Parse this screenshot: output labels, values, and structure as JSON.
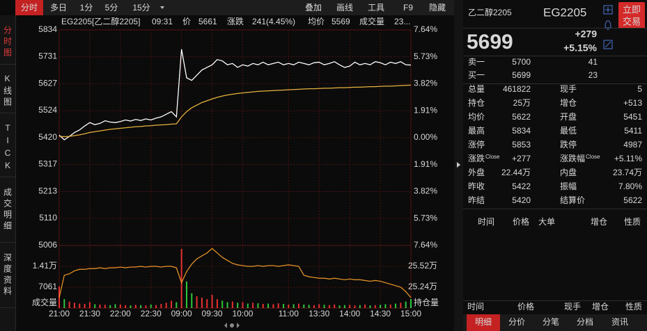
{
  "toolbar": {
    "tabs": [
      "分时",
      "多日",
      "1分",
      "5分",
      "15分"
    ],
    "tools": [
      "叠加",
      "画线",
      "工具",
      "F9",
      "隐藏"
    ]
  },
  "side_tabs": [
    "分时图",
    "K线图",
    "TICK",
    "成交明细",
    "深度资料"
  ],
  "header": [
    {
      "text": "EG2205[乙二醇2205]",
      "color": "#e8e8e8"
    },
    {
      "text": "09:31",
      "color": "#38c8e8"
    },
    {
      "text": "价",
      "color": "#e8e8e8"
    },
    {
      "text": "5661",
      "color": "#ff4040"
    },
    {
      "text": "涨跌",
      "color": "#e8e8e8"
    },
    {
      "text": "241(4.45%)",
      "color": "#ff4040"
    },
    {
      "text": "均价",
      "color": "#e8e8e8"
    },
    {
      "text": "5569",
      "color": "#ff4040"
    },
    {
      "text": "成交量",
      "color": "#e8e8e8"
    },
    {
      "text": "23...",
      "color": "#e8e8e8"
    }
  ],
  "chart_data": [
    {
      "type": "line",
      "x": [
        0,
        5,
        10,
        15,
        20,
        25,
        30,
        35,
        40,
        45,
        50,
        55,
        60,
        65,
        70,
        75,
        80,
        85,
        90,
        95,
        100,
        105,
        110,
        115,
        120,
        125,
        130,
        135,
        140,
        145,
        150,
        155,
        160,
        165,
        170,
        175,
        180,
        185,
        190,
        195,
        200,
        205,
        210,
        215,
        220,
        225,
        230,
        235,
        240,
        245,
        250,
        255,
        260,
        265,
        270,
        275,
        280,
        285,
        290,
        295,
        300,
        305,
        310,
        315,
        320,
        325,
        330,
        335,
        340,
        345
      ],
      "xlim": [
        0,
        345
      ],
      "xticks": [
        {
          "value": 0,
          "label": "21:00"
        },
        {
          "value": 30,
          "label": "21:30"
        },
        {
          "value": 60,
          "label": "22:00"
        },
        {
          "value": 90,
          "label": "22:30"
        },
        {
          "value": 120,
          "label": "09:00"
        },
        {
          "value": 150,
          "label": "09:30"
        },
        {
          "value": 180,
          "label": "10:00"
        },
        {
          "value": 225,
          "label": "11:00"
        },
        {
          "value": 255,
          "label": "13:30"
        },
        {
          "value": 285,
          "label": "14:00"
        },
        {
          "value": 315,
          "label": "14:30"
        },
        {
          "value": 345,
          "label": "15:00"
        }
      ],
      "ylim": [
        5006,
        5834
      ],
      "yticks": [
        5834,
        5731,
        5627,
        5524,
        5420,
        5317,
        5213,
        5110,
        5006
      ],
      "y2lim": [
        -7.64,
        7.64
      ],
      "y2ticks": [
        {
          "value": 7.64,
          "label": "7.64%"
        },
        {
          "value": 5.73,
          "label": "5.73%"
        },
        {
          "value": 3.82,
          "label": "3.82%"
        },
        {
          "value": 1.91,
          "label": "1.91%"
        },
        {
          "value": 0,
          "label": "0.00%"
        },
        {
          "value": -1.91,
          "label": "1.91%"
        },
        {
          "value": -3.82,
          "label": "3.82%"
        },
        {
          "value": -5.73,
          "label": "5.73%"
        },
        {
          "value": -7.64,
          "label": "7.64%"
        }
      ],
      "grid": true,
      "series": [
        {
          "color": "#ffffff",
          "values": [
            5430,
            5412,
            5425,
            5440,
            5450,
            5465,
            5478,
            5470,
            5475,
            5485,
            5480,
            5478,
            5482,
            5488,
            5484,
            5490,
            5486,
            5492,
            5488,
            5495,
            5500,
            5510,
            5520,
            5500,
            5760,
            5650,
            5640,
            5660,
            5680,
            5690,
            5700,
            5720,
            5715,
            5700,
            5705,
            5690,
            5700,
            5695,
            5705,
            5700,
            5710,
            5700,
            5705,
            5710,
            5700,
            5705,
            5700,
            5710,
            5705,
            5700,
            5708,
            5710,
            5700,
            5705,
            5712,
            5700,
            5690,
            5695,
            5710,
            5700,
            5705,
            5700,
            5712,
            5708,
            5700,
            5710,
            5705,
            5712,
            5700,
            5699
          ]
        },
        {
          "color": "#e8b33c",
          "values": [
            5425,
            5424,
            5425,
            5428,
            5431,
            5435,
            5440,
            5443,
            5446,
            5449,
            5452,
            5454,
            5456,
            5458,
            5460,
            5462,
            5463,
            5465,
            5466,
            5468,
            5469,
            5470,
            5472,
            5473,
            5500,
            5520,
            5535,
            5545,
            5555,
            5562,
            5569,
            5575,
            5580,
            5584,
            5587,
            5590,
            5592,
            5594,
            5596,
            5598,
            5599,
            5600,
            5601,
            5602,
            5603,
            5604,
            5605,
            5606,
            5607,
            5608,
            5608,
            5609,
            5610,
            5610,
            5611,
            5612,
            5612,
            5613,
            5614,
            5614,
            5615,
            5616,
            5616,
            5617,
            5618,
            5618,
            5619,
            5620,
            5621,
            5622
          ]
        }
      ]
    },
    {
      "type": "bar",
      "ylabel": "成交量",
      "y2label": "持仓量",
      "ylim": [
        0,
        21150
      ],
      "yticks": [
        {
          "value": 14100,
          "label": "1.41万"
        },
        7061
      ],
      "y2lim": [
        24.96,
        25.8
      ],
      "y2ticks": [
        {
          "value": 25.52,
          "label": "25.52万"
        },
        {
          "value": 25.24,
          "label": "25.24万"
        }
      ],
      "up_color": "#e83030",
      "down_color": "#2ec83a",
      "series": [
        {
          "values": [
            7300,
            3000,
            2200,
            1800,
            1500,
            1400,
            2000,
            1300,
            1200,
            1100,
            1000,
            1300,
            1200,
            1000,
            900,
            1100,
            1000,
            900,
            1200,
            1000,
            1400,
            1800,
            2500,
            2000,
            20000,
            9000,
            5000,
            4000,
            3500,
            3000,
            4500,
            3000,
            2500,
            2000,
            2200,
            1800,
            2000,
            1500,
            1800,
            1600,
            1400,
            1500,
            1300,
            1600,
            1400,
            1200,
            1300,
            1500,
            1200,
            1100,
            1000,
            1300,
            1100,
            1000,
            1200,
            900,
            1000,
            1100,
            900,
            1000,
            1200,
            900,
            1000,
            1100,
            1300,
            1200,
            1500,
            1800,
            2200,
            3000
          ]
        },
        {
          "axis": "y2",
          "color": "#f09a28",
          "values": [
            25.1,
            25.4,
            25.42,
            25.46,
            25.48,
            25.48,
            25.49,
            25.49,
            25.5,
            25.49,
            25.5,
            25.5,
            25.51,
            25.5,
            25.51,
            25.51,
            25.52,
            25.51,
            25.52,
            25.52,
            25.51,
            25.52,
            25.52,
            25.5,
            25.3,
            25.45,
            25.55,
            25.62,
            25.66,
            25.7,
            25.76,
            25.7,
            25.64,
            25.6,
            25.56,
            25.54,
            25.53,
            25.52,
            25.52,
            25.53,
            25.52,
            25.53,
            25.53,
            25.52,
            25.53,
            25.54,
            25.53,
            25.52,
            25.4,
            25.38,
            25.37,
            25.36,
            25.36,
            25.35,
            25.36,
            25.35,
            25.34,
            25.35,
            25.34,
            25.34,
            25.33,
            25.32,
            25.33,
            25.32,
            25.3,
            25.28,
            25.26,
            25.24,
            25.18,
            25.1
          ]
        }
      ]
    }
  ],
  "quote": {
    "name": "乙二醇2205",
    "code": "EG2205",
    "button": [
      "立即",
      "交易"
    ],
    "price": "5699",
    "change": "+279",
    "pct": "+5.15%",
    "book": [
      {
        "label": "卖一",
        "price": "5700",
        "qty": "41"
      },
      {
        "label": "买一",
        "price": "5699",
        "qty": "23"
      }
    ],
    "stats": [
      {
        "label": "总量",
        "value": "461822",
        "color": "#e0e0e0"
      },
      {
        "label": "现手",
        "value": "5",
        "color": "#e0e0e0"
      },
      {
        "label": "持仓",
        "value": "25万",
        "color": "#e0e0e0"
      },
      {
        "label": "增仓",
        "value": "+513",
        "color": "#ff4040"
      },
      {
        "label": "均价",
        "value": "5622",
        "color": "#ff4040"
      },
      {
        "label": "开盘",
        "value": "5451",
        "color": "#ff4040"
      },
      {
        "label": "最高",
        "value": "5834",
        "color": "#ff4040"
      },
      {
        "label": "最低",
        "value": "5411",
        "color": "#ff4040"
      },
      {
        "label": "涨停",
        "value": "5853",
        "color": "#ff4040"
      },
      {
        "label": "跌停",
        "value": "4987",
        "color": "#2ec83a"
      },
      {
        "label": "涨跌",
        "sup": "Close",
        "value": "+277",
        "color": "#ff4040"
      },
      {
        "label": "涨跌幅",
        "sup": "Close",
        "value": "+5.11%",
        "color": "#ff4040"
      },
      {
        "label": "外盘",
        "value": "22.44万",
        "color": "#ff4040"
      },
      {
        "label": "内盘",
        "value": "23.74万",
        "color": "#2ec83a"
      },
      {
        "label": "昨收",
        "value": "5422",
        "color": "#e0e0e0"
      },
      {
        "label": "振幅",
        "value": "7.80%",
        "color": "#e0e0e0"
      },
      {
        "label": "昨结",
        "value": "5420",
        "color": "#e0e0e0"
      },
      {
        "label": "结算价",
        "value": "5622",
        "color": "#e0e0e0"
      }
    ],
    "list_header": [
      "时间",
      "价格",
      "大单",
      "增仓",
      "性质"
    ],
    "bottom_header": [
      "时间",
      "价格",
      "现手",
      "增仓",
      "性质"
    ],
    "bottom_tabs": [
      "明细",
      "分价",
      "分笔",
      "分档",
      "资讯"
    ]
  }
}
